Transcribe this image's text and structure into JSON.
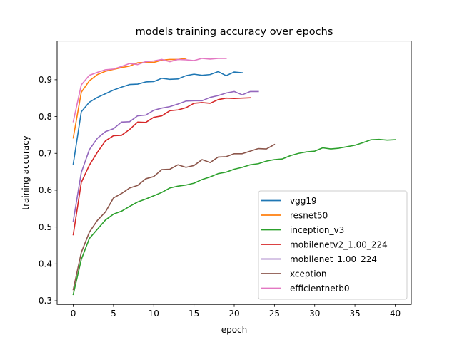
{
  "chart_data": {
    "type": "line",
    "title": "models training accuracy over epochs",
    "xlabel": "epoch",
    "ylabel": "training accuracy",
    "xlim": [
      -2,
      42
    ],
    "ylim": [
      0.29,
      1.005
    ],
    "xticks": [
      0,
      5,
      10,
      15,
      20,
      25,
      30,
      35,
      40
    ],
    "yticks": [
      0.3,
      0.4,
      0.5,
      0.6,
      0.7,
      0.8,
      0.9
    ],
    "grid": false,
    "legend_position": "lower-right",
    "series": [
      {
        "name": "vgg19",
        "color": "#1f77b4",
        "x": [
          0,
          1,
          2,
          3,
          4,
          5,
          6,
          7,
          8,
          9,
          10,
          11,
          12,
          13,
          14,
          15,
          16,
          17,
          18,
          19,
          20,
          21
        ],
        "y": [
          0.671,
          0.813,
          0.839,
          0.852,
          0.862,
          0.872,
          0.88,
          0.887,
          0.888,
          0.894,
          0.895,
          0.904,
          0.901,
          0.902,
          0.911,
          0.915,
          0.912,
          0.914,
          0.922,
          0.911,
          0.921,
          0.919
        ]
      },
      {
        "name": "resnet50",
        "color": "#ff7f0e",
        "x": [
          0,
          1,
          2,
          3,
          4,
          5,
          6,
          7,
          8,
          9,
          10,
          11,
          12,
          13,
          14
        ],
        "y": [
          0.742,
          0.866,
          0.897,
          0.914,
          0.923,
          0.928,
          0.933,
          0.937,
          0.946,
          0.947,
          0.947,
          0.953,
          0.955,
          0.955,
          0.958
        ]
      },
      {
        "name": "inception_v3",
        "color": "#2ca02c",
        "x": [
          0,
          1,
          2,
          3,
          4,
          5,
          6,
          7,
          8,
          9,
          10,
          11,
          12,
          13,
          14,
          15,
          16,
          17,
          18,
          19,
          20,
          21,
          22,
          23,
          24,
          25,
          26,
          27,
          28,
          29,
          30,
          31,
          32,
          33,
          34,
          35,
          36,
          37,
          38,
          39,
          40
        ],
        "y": [
          0.317,
          0.412,
          0.469,
          0.494,
          0.519,
          0.535,
          0.543,
          0.556,
          0.568,
          0.576,
          0.585,
          0.594,
          0.606,
          0.611,
          0.614,
          0.619,
          0.629,
          0.636,
          0.645,
          0.649,
          0.657,
          0.662,
          0.669,
          0.672,
          0.679,
          0.683,
          0.685,
          0.694,
          0.7,
          0.704,
          0.706,
          0.715,
          0.712,
          0.714,
          0.718,
          0.722,
          0.729,
          0.737,
          0.738,
          0.736,
          0.737
        ]
      },
      {
        "name": "mobilenetv2_1.00_224",
        "color": "#d62728",
        "x": [
          0,
          1,
          2,
          3,
          4,
          5,
          6,
          7,
          8,
          9,
          10,
          11,
          12,
          13,
          14,
          15,
          16,
          17,
          18,
          19,
          20,
          21,
          22
        ],
        "y": [
          0.479,
          0.621,
          0.668,
          0.703,
          0.734,
          0.748,
          0.749,
          0.765,
          0.785,
          0.784,
          0.798,
          0.802,
          0.816,
          0.818,
          0.824,
          0.836,
          0.838,
          0.836,
          0.846,
          0.85,
          0.849,
          0.85,
          0.851
        ]
      },
      {
        "name": "mobilenet_1.00_224",
        "color": "#9467bd",
        "x": [
          0,
          1,
          2,
          3,
          4,
          5,
          6,
          7,
          8,
          9,
          10,
          11,
          12,
          13,
          14,
          15,
          16,
          17,
          18,
          19,
          20,
          21,
          22,
          23
        ],
        "y": [
          0.516,
          0.648,
          0.71,
          0.741,
          0.759,
          0.767,
          0.785,
          0.786,
          0.802,
          0.804,
          0.817,
          0.823,
          0.827,
          0.834,
          0.842,
          0.843,
          0.843,
          0.852,
          0.857,
          0.864,
          0.868,
          0.859,
          0.868,
          0.868
        ]
      },
      {
        "name": "xception",
        "color": "#8c564b",
        "x": [
          0,
          1,
          2,
          3,
          4,
          5,
          6,
          7,
          8,
          9,
          10,
          11,
          12,
          13,
          14,
          15,
          16,
          17,
          18,
          19,
          20,
          21,
          22,
          23,
          24,
          25
        ],
        "y": [
          0.33,
          0.431,
          0.486,
          0.518,
          0.541,
          0.579,
          0.591,
          0.606,
          0.613,
          0.631,
          0.637,
          0.656,
          0.657,
          0.669,
          0.662,
          0.667,
          0.683,
          0.675,
          0.69,
          0.691,
          0.699,
          0.699,
          0.706,
          0.713,
          0.712,
          0.724
        ]
      },
      {
        "name": "efficientnetb0",
        "color": "#e377c2",
        "x": [
          0,
          1,
          2,
          3,
          4,
          5,
          6,
          7,
          8,
          9,
          10,
          11,
          12,
          13,
          14,
          15,
          16,
          17,
          18,
          19
        ],
        "y": [
          0.786,
          0.886,
          0.912,
          0.92,
          0.927,
          0.929,
          0.936,
          0.944,
          0.941,
          0.949,
          0.951,
          0.955,
          0.949,
          0.955,
          0.954,
          0.952,
          0.958,
          0.956,
          0.958,
          0.958
        ]
      }
    ]
  }
}
